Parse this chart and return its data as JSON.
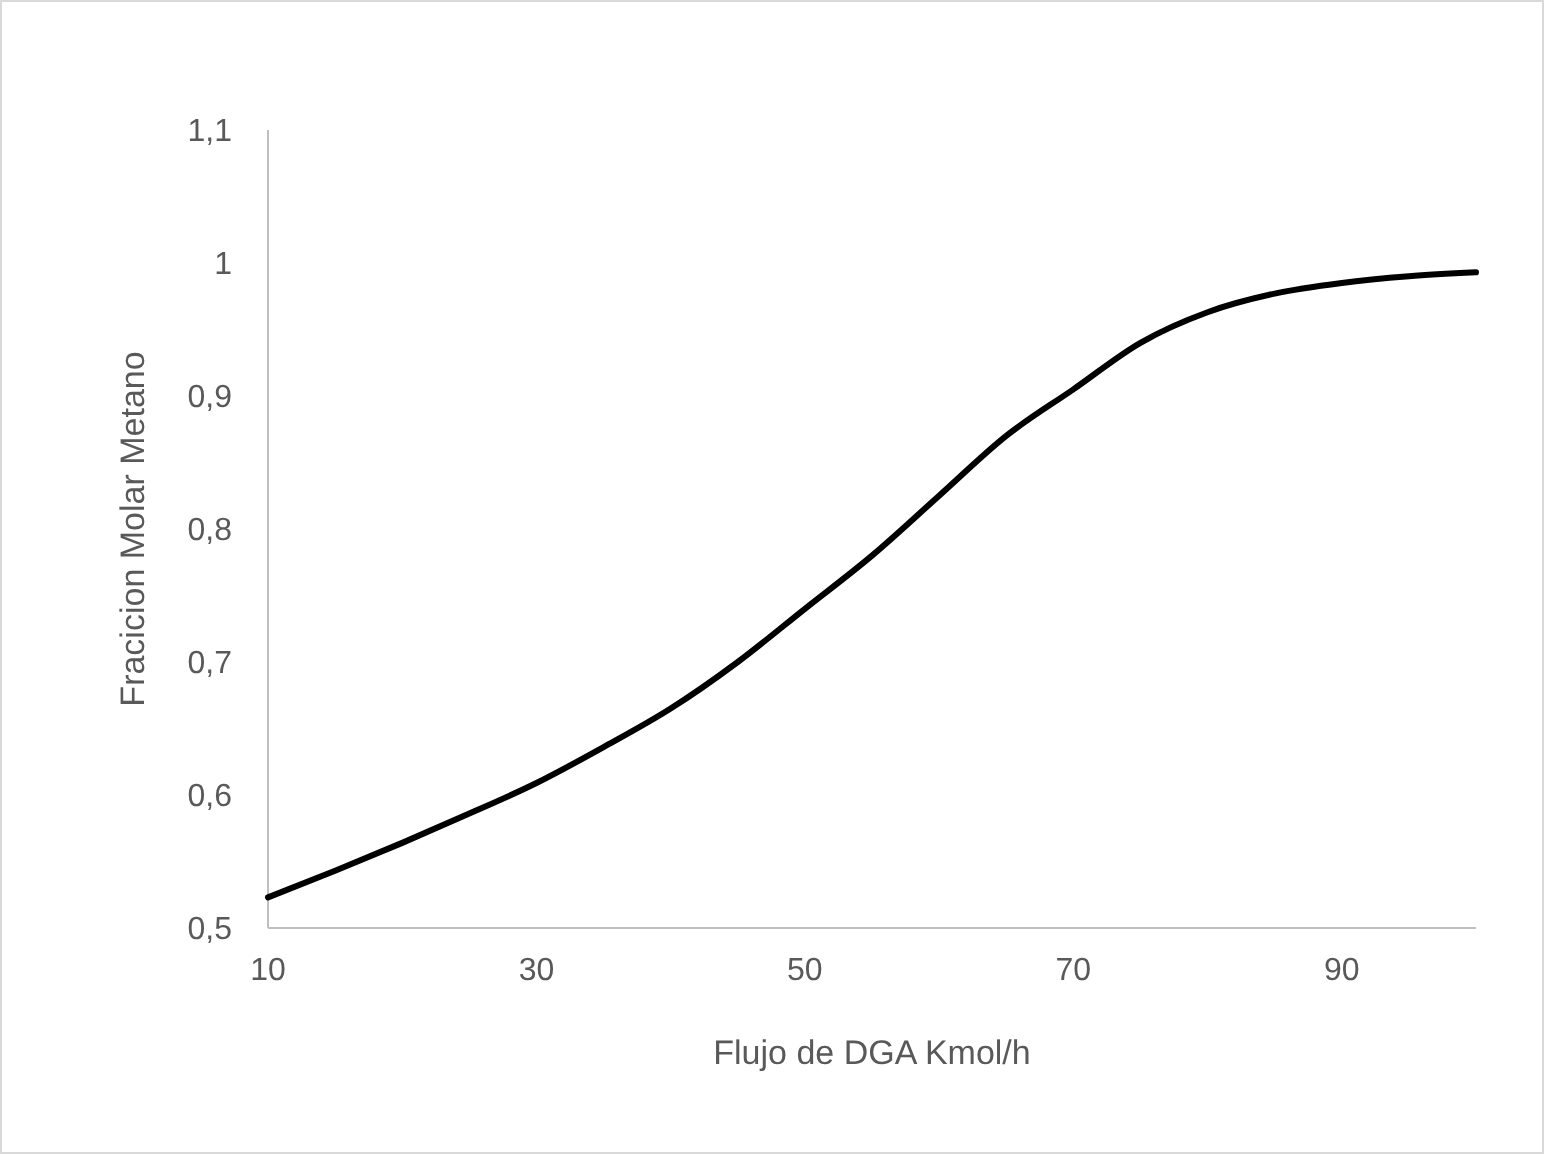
{
  "chart_data": {
    "type": "line",
    "xlabel": "Flujo de DGA Kmol/h",
    "ylabel": "Fracicion Molar Metano",
    "x": [
      10,
      15,
      20,
      25,
      30,
      35,
      40,
      45,
      50,
      55,
      60,
      65,
      70,
      75,
      80,
      85,
      90,
      95,
      100
    ],
    "series": [
      {
        "color": "#000000",
        "values": [
          0.523,
          0.543,
          0.564,
          0.586,
          0.609,
          0.636,
          0.665,
          0.7,
          0.74,
          0.78,
          0.825,
          0.87,
          0.905,
          0.94,
          0.963,
          0.977,
          0.985,
          0.99,
          0.993
        ]
      }
    ],
    "xlim": [
      10,
      100
    ],
    "xticks": [
      10,
      30,
      50,
      70,
      90
    ],
    "ylim": [
      0.5,
      1.1
    ],
    "yticks": [
      {
        "value": 0.5,
        "label": "0,5"
      },
      {
        "value": 0.6,
        "label": "0,6"
      },
      {
        "value": 0.7,
        "label": "0,7"
      },
      {
        "value": 0.8,
        "label": "0,8"
      },
      {
        "value": 0.9,
        "label": "0,9"
      },
      {
        "value": 1,
        "label": "1"
      },
      {
        "value": 1.1,
        "label": "1,1"
      }
    ],
    "grid": false,
    "marker": "none",
    "line_style": "solid"
  }
}
